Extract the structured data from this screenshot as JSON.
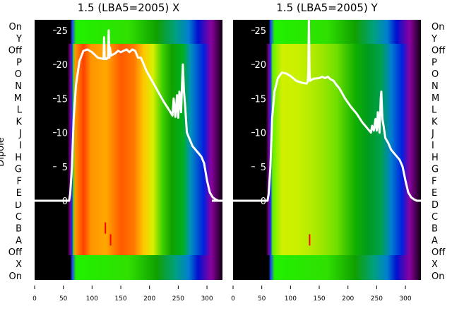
{
  "chart_data": [
    {
      "type": "heatmap",
      "title": "1.5 (LBA5=2005) X",
      "ylabel": "Dipole",
      "row_labels": [
        "On",
        "Y",
        "Off",
        "P",
        "O",
        "N",
        "M",
        "L",
        "K",
        "J",
        "I",
        "H",
        "G",
        "F",
        "E",
        "D",
        "C",
        "B",
        "A",
        "Off",
        "X",
        "On"
      ],
      "x_ticks": [
        0,
        50,
        100,
        150,
        200,
        250,
        300
      ],
      "xlim": [
        0,
        328
      ],
      "inner_y_ticks": [
        0,
        5,
        10,
        15,
        20,
        25
      ],
      "spectrum": {
        "x": [
          0,
          60,
          62,
          65,
          68,
          72,
          78,
          85,
          92,
          100,
          110,
          120,
          121,
          122,
          123,
          125,
          128,
          129,
          130,
          131,
          133,
          135,
          140,
          145,
          150,
          155,
          160,
          165,
          170,
          175,
          180,
          185,
          195,
          205,
          215,
          225,
          235,
          240,
          242,
          245,
          248,
          250,
          252,
          255,
          257,
          258,
          260,
          262,
          265,
          270,
          275,
          285,
          290,
          295,
          300,
          305,
          310,
          315,
          320,
          328
        ],
        "y": [
          0,
          0,
          1,
          5,
          12,
          17,
          20.5,
          22,
          22.2,
          21.8,
          21,
          20.8,
          24,
          20.8,
          21,
          20.8,
          21,
          25,
          21,
          22.5,
          21.3,
          21.4,
          21.6,
          22,
          21.8,
          22,
          22.2,
          21.8,
          22.2,
          22,
          21,
          21,
          19,
          17.5,
          16,
          14.5,
          13.2,
          12.5,
          15,
          12.3,
          15.5,
          12.2,
          16,
          13,
          18,
          20,
          16,
          14,
          10,
          9,
          8,
          7,
          6.5,
          5.5,
          3,
          1.2,
          0.5,
          0.2,
          0,
          0
        ]
      },
      "markers": [
        {
          "row": "B",
          "x": 122
        },
        {
          "row": "A",
          "x": 131
        }
      ]
    },
    {
      "type": "heatmap",
      "title": "1.5 (LBA5=2005) Y",
      "row_labels": [
        "On",
        "Y",
        "Off",
        "P",
        "O",
        "N",
        "M",
        "L",
        "K",
        "J",
        "I",
        "H",
        "G",
        "F",
        "E",
        "D",
        "C",
        "B",
        "A",
        "Off",
        "X",
        "On"
      ],
      "x_ticks": [
        0,
        50,
        100,
        150,
        200,
        250,
        300
      ],
      "xlim": [
        0,
        328
      ],
      "inner_y_ticks": [
        0,
        5,
        10,
        15,
        20,
        25
      ],
      "spectrum": {
        "x": [
          0,
          60,
          62,
          65,
          68,
          72,
          78,
          85,
          92,
          100,
          110,
          120,
          128,
          130,
          131,
          132,
          133,
          134,
          136,
          140,
          150,
          155,
          160,
          165,
          170,
          175,
          180,
          185,
          195,
          205,
          215,
          225,
          235,
          240,
          242,
          245,
          248,
          250,
          252,
          255,
          257,
          258,
          260,
          262,
          265,
          270,
          275,
          285,
          290,
          295,
          300,
          305,
          310,
          315,
          320,
          328
        ],
        "y": [
          0,
          0,
          1,
          5,
          12,
          16,
          18,
          18.8,
          18.7,
          18.3,
          17.6,
          17.3,
          17.2,
          17.5,
          19,
          30,
          19,
          17.6,
          17.7,
          17.9,
          18,
          18.2,
          18,
          18.2,
          17.8,
          17.6,
          17,
          16.5,
          15,
          13.8,
          12.8,
          11.5,
          10.5,
          10,
          11,
          10.3,
          12,
          10.3,
          13,
          10,
          15,
          16,
          12,
          11,
          9.2,
          8.5,
          7.5,
          6.5,
          6,
          5,
          3,
          1.2,
          0.5,
          0.2,
          0,
          0
        ]
      },
      "markers": [
        {
          "row": "A",
          "x": 132
        }
      ]
    }
  ]
}
